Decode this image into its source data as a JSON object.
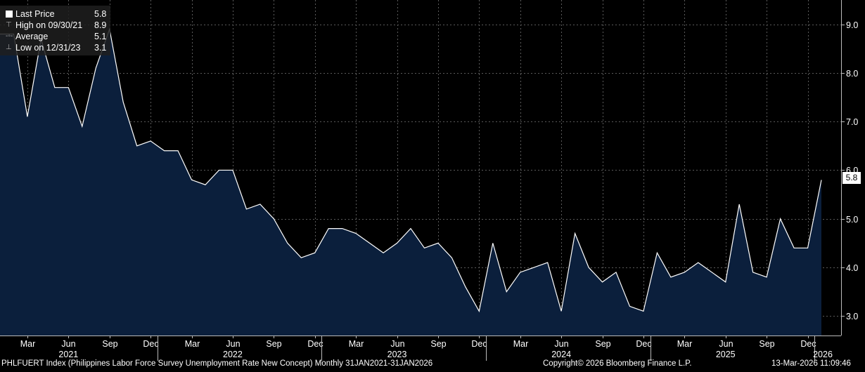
{
  "legend": {
    "items": [
      {
        "label": "Last Price",
        "value": "5.8",
        "symbol": "square"
      },
      {
        "label": "High on 09/30/21",
        "value": "8.9",
        "symbol": "high"
      },
      {
        "label": "Average",
        "value": "5.1",
        "symbol": "avg"
      },
      {
        "label": "Low on 12/31/23",
        "value": "3.1",
        "symbol": "low"
      }
    ]
  },
  "last_badge": "5.8",
  "footer": {
    "left": "PHLFUERT Index (Philippines Labor Force Survey Unemployment Rate New Concept) Monthly 31JAN2021-31JAN2026",
    "center": "Copyright© 2026 Bloomberg Finance L.P.",
    "right": "13-Mar-2026 11:09:46"
  },
  "chart_data": {
    "type": "area",
    "series": [
      {
        "x": [
          "2021-01",
          "2021-02",
          "2021-03",
          "2021-04",
          "2021-05",
          "2021-06",
          "2021-07",
          "2021-08",
          "2021-09",
          "2021-10",
          "2021-11",
          "2021-12",
          "2022-01",
          "2022-02",
          "2022-03",
          "2022-04",
          "2022-05",
          "2022-06",
          "2022-07",
          "2022-08",
          "2022-09",
          "2022-10",
          "2022-11",
          "2022-12",
          "2023-01",
          "2023-02",
          "2023-03",
          "2023-04",
          "2023-05",
          "2023-06",
          "2023-07",
          "2023-08",
          "2023-09",
          "2023-10",
          "2023-11",
          "2023-12",
          "2024-01",
          "2024-02",
          "2024-03",
          "2024-04",
          "2024-05",
          "2024-06",
          "2024-07",
          "2024-08",
          "2024-09",
          "2024-10",
          "2024-11",
          "2024-12",
          "2025-01",
          "2025-02",
          "2025-03",
          "2025-04",
          "2025-05",
          "2025-06",
          "2025-07",
          "2025-08",
          "2025-09",
          "2025-10",
          "2025-11",
          "2025-12",
          "2026-01"
        ],
        "values": [
          8.8,
          8.8,
          7.1,
          8.7,
          7.7,
          7.7,
          6.9,
          8.1,
          8.9,
          7.4,
          6.5,
          6.6,
          6.4,
          6.4,
          5.8,
          5.7,
          6.0,
          6.0,
          5.2,
          5.3,
          5.0,
          4.5,
          4.2,
          4.3,
          4.8,
          4.8,
          4.7,
          4.5,
          4.3,
          4.5,
          4.8,
          4.4,
          4.5,
          4.2,
          3.6,
          3.1,
          4.5,
          3.5,
          3.9,
          4.0,
          4.1,
          3.1,
          4.7,
          4.0,
          3.7,
          3.9,
          3.2,
          3.1,
          4.3,
          3.8,
          3.9,
          4.1,
          3.9,
          3.7,
          5.3,
          3.9,
          3.8,
          5.0,
          4.4,
          4.4,
          5.8
        ]
      }
    ],
    "ylim": [
      2.6,
      9.5
    ],
    "yticks": [
      3.0,
      4.0,
      5.0,
      6.0,
      7.0,
      8.0,
      9.0
    ],
    "ytick_labels": [
      "3.0",
      "4.0",
      "5.0",
      "6.0",
      "7.0",
      "8.0",
      "9.0"
    ],
    "x_month_ticks": [
      {
        "label": "Mar",
        "i": 2
      },
      {
        "label": "Jun",
        "i": 5
      },
      {
        "label": "Sep",
        "i": 8
      },
      {
        "label": "Dec",
        "i": 11
      },
      {
        "label": "Mar",
        "i": 14
      },
      {
        "label": "Jun",
        "i": 17
      },
      {
        "label": "Sep",
        "i": 20
      },
      {
        "label": "Dec",
        "i": 23
      },
      {
        "label": "Mar",
        "i": 26
      },
      {
        "label": "Jun",
        "i": 29
      },
      {
        "label": "Sep",
        "i": 32
      },
      {
        "label": "Dec",
        "i": 35
      },
      {
        "label": "Mar",
        "i": 38
      },
      {
        "label": "Jun",
        "i": 41
      },
      {
        "label": "Sep",
        "i": 44
      },
      {
        "label": "Dec",
        "i": 47
      },
      {
        "label": "Mar",
        "i": 50
      },
      {
        "label": "Jun",
        "i": 53
      },
      {
        "label": "Sep",
        "i": 56
      },
      {
        "label": "Dec",
        "i": 59
      }
    ],
    "x_year_ticks": [
      {
        "label": "2021",
        "i": 5
      },
      {
        "label": "2022",
        "i": 17
      },
      {
        "label": "2023",
        "i": 29
      },
      {
        "label": "2024",
        "i": 41
      },
      {
        "label": "2025",
        "i": 53
      },
      {
        "label": "2026",
        "i": 60
      }
    ],
    "grid": true,
    "colors": {
      "line": "#ffffff",
      "fill": "#0b1f3c",
      "grid": "#5a5a5a",
      "background": "#000000"
    }
  }
}
